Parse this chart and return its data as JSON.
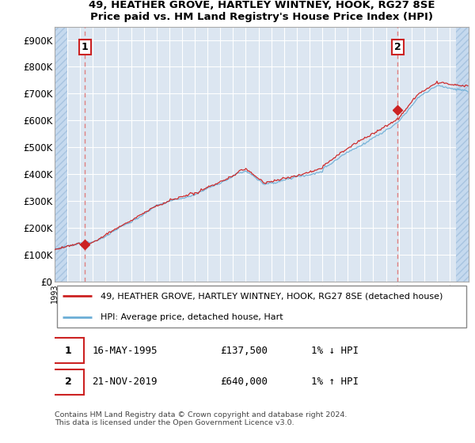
{
  "title_line1": "49, HEATHER GROVE, HARTLEY WINTNEY, HOOK, RG27 8SE",
  "title_line2": "Price paid vs. HM Land Registry's House Price Index (HPI)",
  "ylim": [
    0,
    950000
  ],
  "yticks": [
    0,
    100000,
    200000,
    300000,
    400000,
    500000,
    600000,
    700000,
    800000,
    900000
  ],
  "ytick_labels": [
    "£0",
    "£100K",
    "£200K",
    "£300K",
    "£400K",
    "£500K",
    "£600K",
    "£700K",
    "£800K",
    "£900K"
  ],
  "xlim_start": 1993.0,
  "xlim_end": 2025.5,
  "hatch_left_end": 1994.0,
  "hatch_right_start": 2024.5,
  "legend_label_red": "49, HEATHER GROVE, HARTLEY WINTNEY, HOOK, RG27 8SE (detached house)",
  "legend_label_blue": "HPI: Average price, detached house, Hart",
  "ann1_label": "1",
  "ann1_date": "16-MAY-1995",
  "ann1_price": "£137,500",
  "ann1_hpi": "1% ↓ HPI",
  "ann1_x": 1995.37,
  "ann1_y": 137500,
  "ann2_label": "2",
  "ann2_date": "21-NOV-2019",
  "ann2_price": "£640,000",
  "ann2_hpi": "1% ↑ HPI",
  "ann2_x": 2019.9,
  "ann2_y": 640000,
  "copyright_text": "Contains HM Land Registry data © Crown copyright and database right 2024.\nThis data is licensed under the Open Government Licence v3.0.",
  "bg_color": "#dce6f1",
  "hatch_color": "#c5d9ee",
  "grid_color": "#ffffff",
  "red_color": "#cc2222",
  "blue_color": "#6baed6",
  "vline_color": "#e08080",
  "box_edge_color": "#cc2222"
}
